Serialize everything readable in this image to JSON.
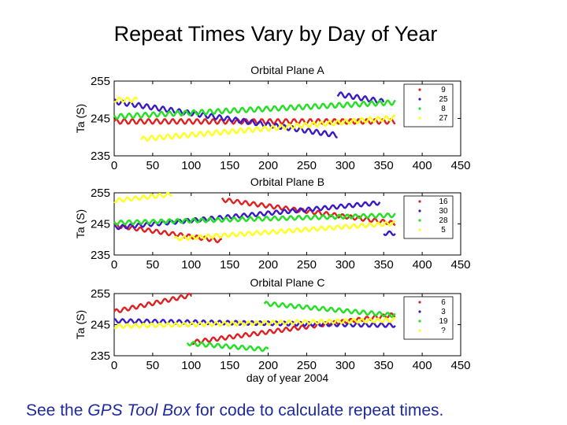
{
  "slide": {
    "title": "Repeat Times Vary by Day of Year",
    "caption_before": "See the ",
    "caption_italic": "GPS Tool Box",
    "caption_after": " for code to calculate repeat times."
  },
  "chart_data": [
    {
      "type": "line",
      "title": "Orbital Plane A",
      "xlabel": "",
      "ylabel": "Ta (S)",
      "xlim": [
        0,
        450
      ],
      "ylim": [
        235,
        255
      ],
      "xticks": [
        0,
        50,
        100,
        150,
        200,
        250,
        300,
        350,
        400,
        450
      ],
      "yticks": [
        235,
        245,
        255
      ],
      "legend_position": "top-right",
      "series": [
        {
          "name": "9",
          "color": "#e02020",
          "segments": [
            {
              "x": [
                0,
                365
              ],
              "y": [
                244.2,
                244.2
              ]
            }
          ]
        },
        {
          "name": "25",
          "color": "#3a1ac8",
          "segments": [
            {
              "x": [
                0,
                290
              ],
              "y": [
                249.5,
                240.5
              ]
            },
            {
              "x": [
                290,
                350
              ],
              "y": [
                251.5,
                249.5
              ]
            }
          ]
        },
        {
          "name": "8",
          "color": "#22e022",
          "segments": [
            {
              "x": [
                0,
                365
              ],
              "y": [
                245.5,
                249.3
              ]
            }
          ]
        },
        {
          "name": "27",
          "color": "#ffff20",
          "segments": [
            {
              "x": [
                0,
                30
              ],
              "y": [
                250,
                250
              ]
            },
            {
              "x": [
                35,
                365
              ],
              "y": [
                239.5,
                245.2
              ]
            }
          ]
        }
      ]
    },
    {
      "type": "line",
      "title": "Orbital Plane B",
      "xlabel": "",
      "ylabel": "Ta (S)",
      "xlim": [
        0,
        450
      ],
      "ylim": [
        235,
        255
      ],
      "xticks": [
        0,
        50,
        100,
        150,
        200,
        250,
        300,
        350,
        400,
        450
      ],
      "yticks": [
        235,
        245,
        255
      ],
      "legend_position": "top-right",
      "series": [
        {
          "name": "16",
          "color": "#e02020",
          "segments": [
            {
              "x": [
                0,
                140
              ],
              "y": [
                244.5,
                239.5
              ]
            },
            {
              "x": [
                140,
                365
              ],
              "y": [
                252.8,
                245.2
              ]
            }
          ]
        },
        {
          "name": "30",
          "color": "#3a1ac8",
          "segments": [
            {
              "x": [
                0,
                345
              ],
              "y": [
                243.8,
                251.8
              ]
            },
            {
              "x": [
                350,
                365
              ],
              "y": [
                242,
                242
              ]
            }
          ]
        },
        {
          "name": "28",
          "color": "#22e022",
          "segments": [
            {
              "x": [
                0,
                365
              ],
              "y": [
                245.4,
                247.8
              ]
            }
          ]
        },
        {
          "name": "5",
          "color": "#ffff20",
          "segments": [
            {
              "x": [
                0,
                75
              ],
              "y": [
                252.5,
                254.5
              ]
            },
            {
              "x": [
                78,
                365
              ],
              "y": [
                240.2,
                245.2
              ]
            }
          ]
        }
      ]
    },
    {
      "type": "line",
      "title": "Orbital Plane C",
      "xlabel": "day of year 2004",
      "ylabel": "Ta (S)",
      "xlim": [
        0,
        450
      ],
      "ylim": [
        235,
        255
      ],
      "xticks": [
        0,
        50,
        100,
        150,
        200,
        250,
        300,
        350,
        400,
        450
      ],
      "yticks": [
        235,
        245,
        255
      ],
      "legend_position": "top-right",
      "series": [
        {
          "name": "6",
          "color": "#e02020",
          "segments": [
            {
              "x": [
                0,
                100
              ],
              "y": [
                249.2,
                254.5
              ]
            },
            {
              "x": [
                100,
                365
              ],
              "y": [
                239.3,
                248.2
              ]
            }
          ]
        },
        {
          "name": "3",
          "color": "#3a1ac8",
          "segments": [
            {
              "x": [
                0,
                365
              ],
              "y": [
                246.2,
                244.8
              ]
            }
          ]
        },
        {
          "name": "19",
          "color": "#22e022",
          "segments": [
            {
              "x": [
                95,
                200
              ],
              "y": [
                239,
                237
              ]
            },
            {
              "x": [
                195,
                365
              ],
              "y": [
                251.8,
                248
              ]
            }
          ]
        },
        {
          "name": "?",
          "color": "#ffff20",
          "segments": [
            {
              "x": [
                0,
                365
              ],
              "y": [
                244.5,
                246.5
              ]
            }
          ]
        }
      ]
    }
  ]
}
